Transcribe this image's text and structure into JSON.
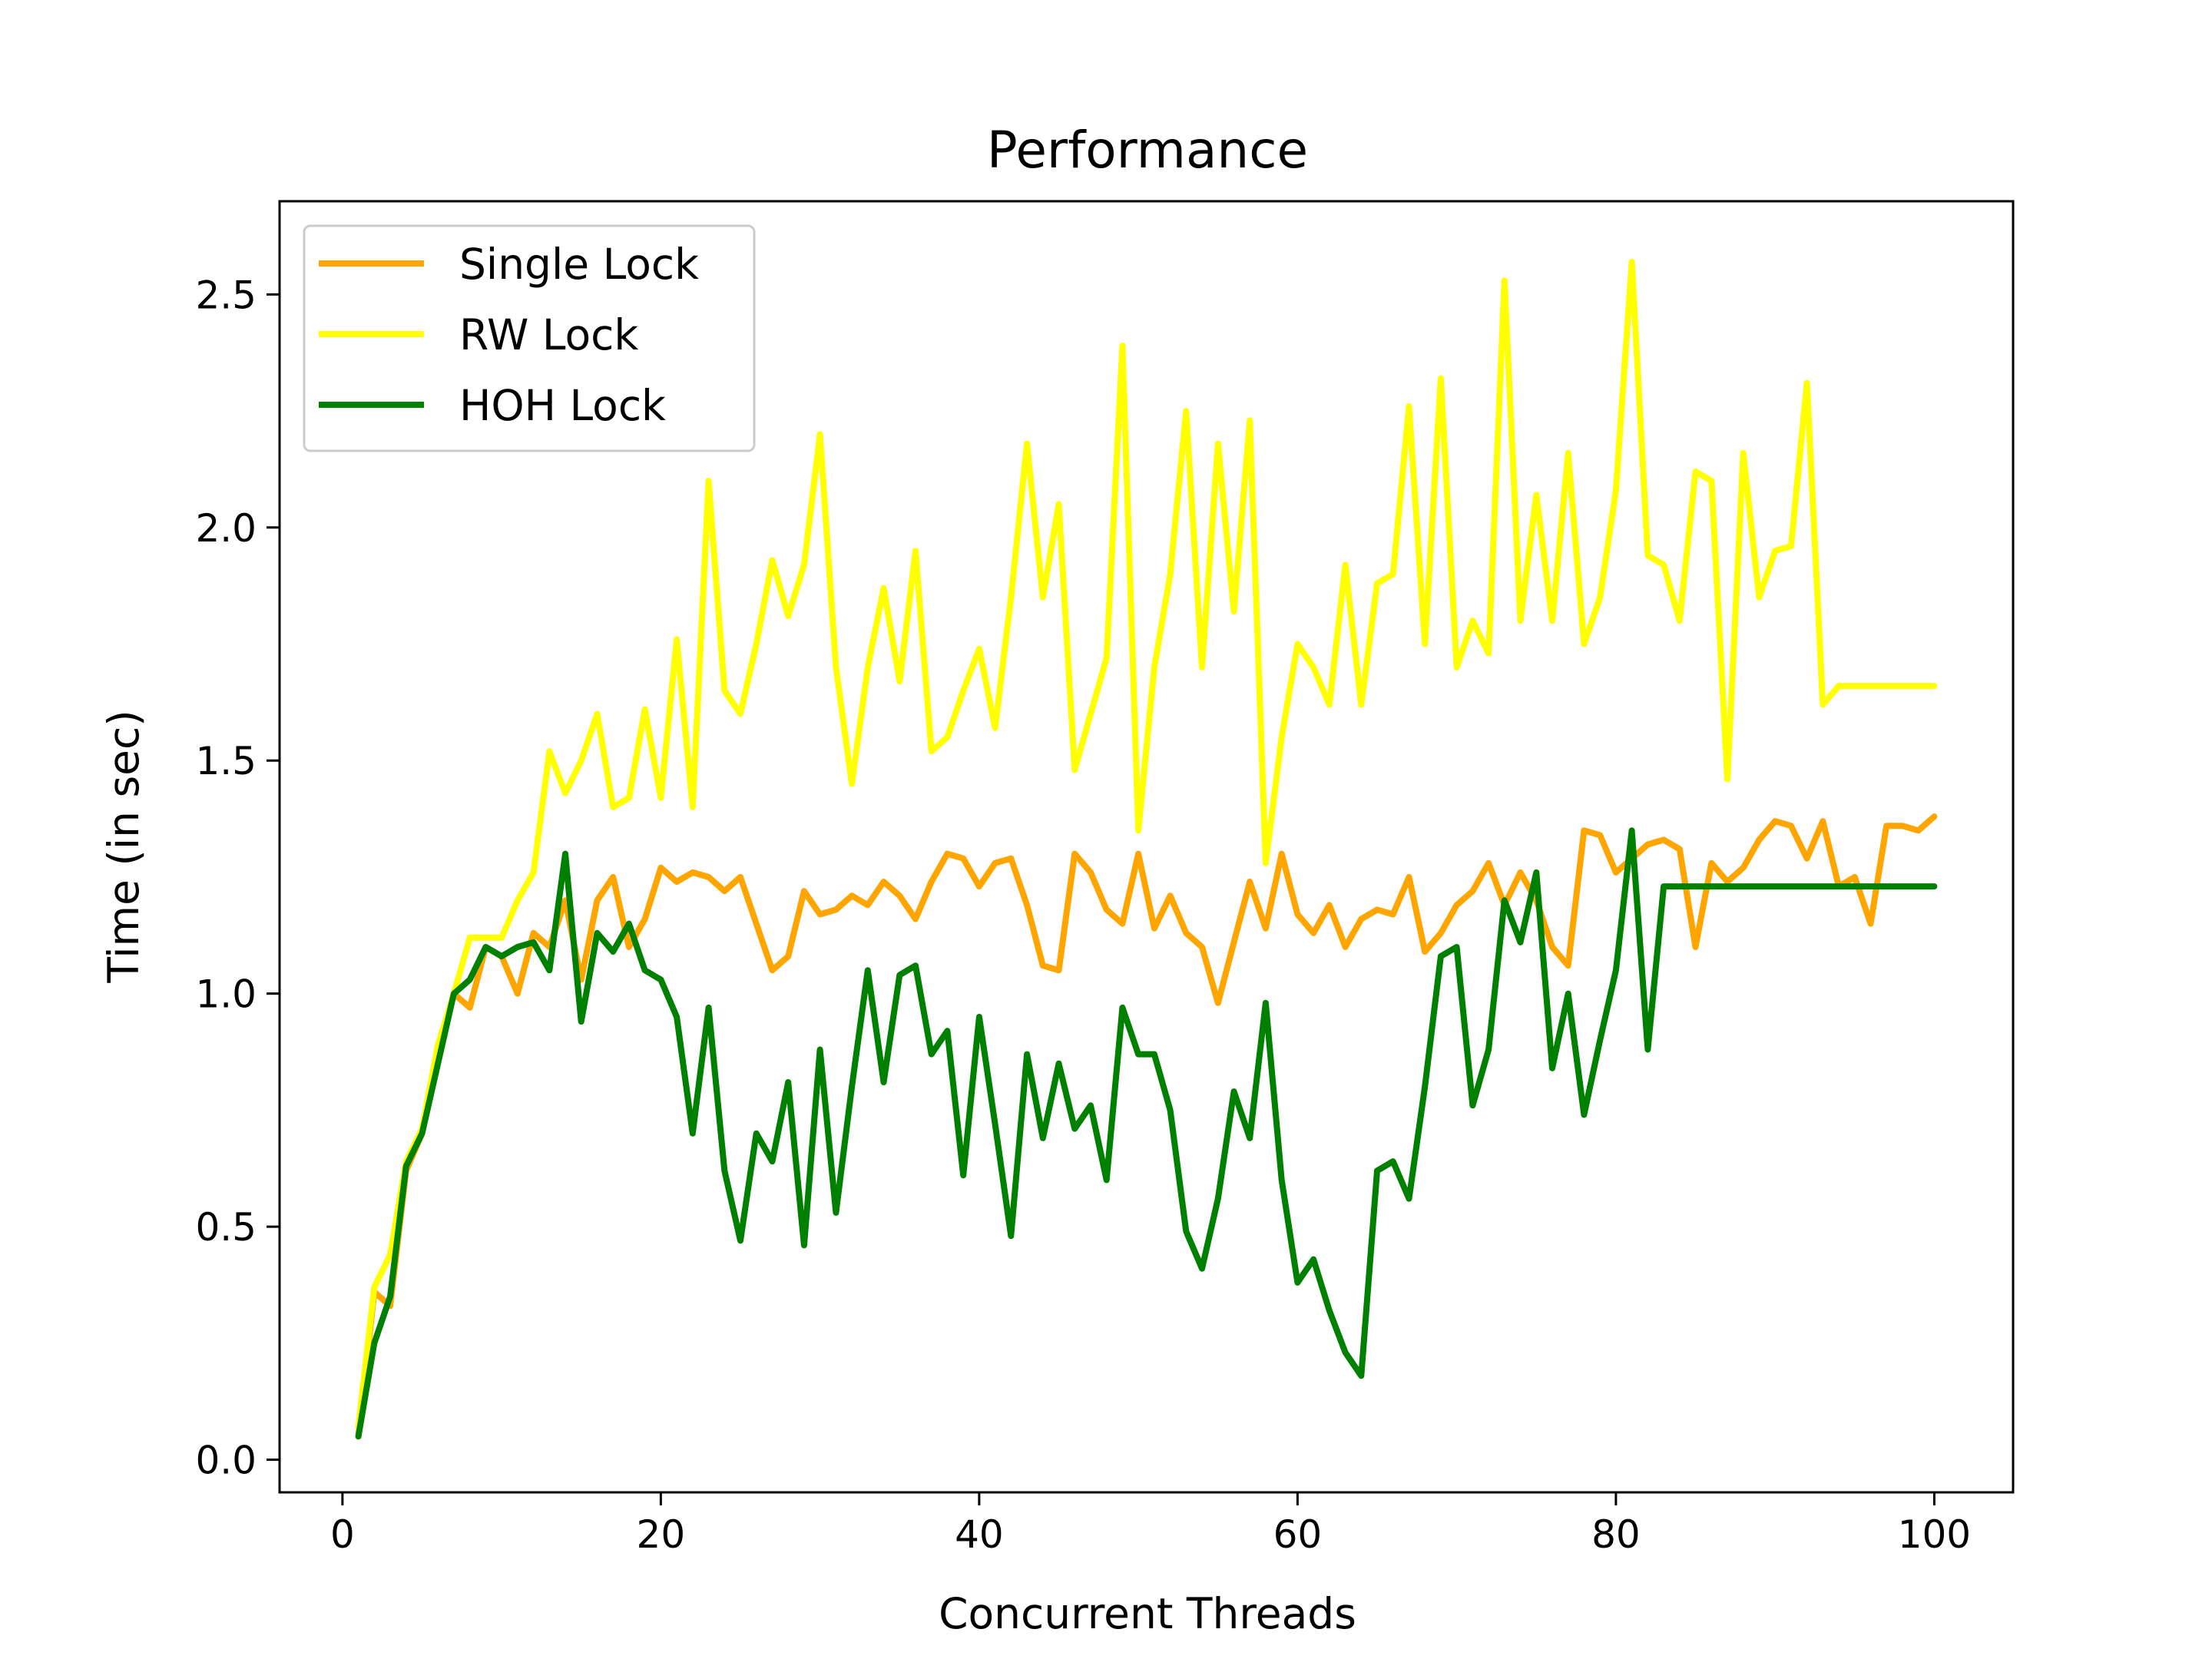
{
  "chart_data": {
    "type": "line",
    "title": "Performance",
    "xlabel": "Concurrent Threads",
    "ylabel": "Time (in sec)",
    "xlim": [
      -3.95,
      104.95
    ],
    "ylim": [
      -0.07,
      2.7
    ],
    "xticks": [
      0,
      20,
      40,
      60,
      80,
      100
    ],
    "yticks": [
      0.0,
      0.5,
      1.0,
      1.5,
      2.0,
      2.5
    ],
    "xtick_labels": [
      "0",
      "20",
      "40",
      "60",
      "80",
      "100"
    ],
    "ytick_labels": [
      "0.0",
      "0.5",
      "1.0",
      "1.5",
      "2.0",
      "2.5"
    ],
    "grid": false,
    "legend_position": "top-left",
    "x": [
      1,
      2,
      3,
      4,
      5,
      6,
      7,
      8,
      9,
      10,
      11,
      12,
      13,
      14,
      15,
      16,
      17,
      18,
      19,
      20,
      21,
      22,
      23,
      24,
      25,
      26,
      27,
      28,
      29,
      30,
      31,
      32,
      33,
      34,
      35,
      36,
      37,
      38,
      39,
      40,
      41,
      42,
      43,
      44,
      45,
      46,
      47,
      48,
      49,
      50,
      51,
      52,
      53,
      54,
      55,
      56,
      57,
      58,
      59,
      60,
      61,
      62,
      63,
      64,
      65,
      66,
      67,
      68,
      69,
      70,
      71,
      72,
      73,
      74,
      75,
      76,
      77,
      78,
      79,
      80,
      81,
      82,
      83,
      84,
      85,
      86,
      87,
      88,
      89,
      90,
      91,
      92,
      93,
      94,
      95,
      96,
      97,
      98,
      99,
      100
    ],
    "series": [
      {
        "name": "Single Lock",
        "color": "#FFA500",
        "values": [
          0.05,
          0.36,
          0.33,
          0.62,
          0.7,
          0.86,
          1.0,
          0.97,
          1.1,
          1.08,
          1.0,
          1.13,
          1.1,
          1.2,
          1.03,
          1.2,
          1.25,
          1.1,
          1.16,
          1.27,
          1.24,
          1.26,
          1.25,
          1.22,
          1.25,
          1.15,
          1.05,
          1.08,
          1.22,
          1.17,
          1.18,
          1.21,
          1.19,
          1.24,
          1.21,
          1.16,
          1.24,
          1.3,
          1.29,
          1.23,
          1.28,
          1.29,
          1.19,
          1.06,
          1.05,
          1.3,
          1.26,
          1.18,
          1.15,
          1.3,
          1.14,
          1.21,
          1.13,
          1.1,
          0.98,
          1.11,
          1.24,
          1.14,
          1.3,
          1.17,
          1.13,
          1.19,
          1.1,
          1.16,
          1.18,
          1.17,
          1.25,
          1.09,
          1.13,
          1.19,
          1.22,
          1.28,
          1.19,
          1.26,
          1.2,
          1.1,
          1.06,
          1.35,
          1.34,
          1.26,
          1.29,
          1.32,
          1.33,
          1.31,
          1.1,
          1.28,
          1.24,
          1.27,
          1.33,
          1.37,
          1.36,
          1.29,
          1.37,
          1.23,
          1.25,
          1.15,
          1.36,
          1.36,
          1.35,
          1.38
        ]
      },
      {
        "name": "RW Lock",
        "color": "#FFFF00",
        "values": [
          0.07,
          0.37,
          0.44,
          0.64,
          0.71,
          0.89,
          1.0,
          1.12,
          1.12,
          1.12,
          1.2,
          1.26,
          1.52,
          1.43,
          1.5,
          1.6,
          1.4,
          1.42,
          1.61,
          1.42,
          1.76,
          1.4,
          2.1,
          1.65,
          1.6,
          1.75,
          1.93,
          1.81,
          1.92,
          2.2,
          1.7,
          1.45,
          1.7,
          1.87,
          1.67,
          1.95,
          1.52,
          1.55,
          1.65,
          1.74,
          1.57,
          1.85,
          2.18,
          1.85,
          2.05,
          1.48,
          1.6,
          1.72,
          2.39,
          1.35,
          1.7,
          1.9,
          2.25,
          1.7,
          2.18,
          1.82,
          2.23,
          1.28,
          1.55,
          1.75,
          1.7,
          1.62,
          1.92,
          1.62,
          1.88,
          1.9,
          2.26,
          1.75,
          2.32,
          1.7,
          1.8,
          1.73,
          2.53,
          1.8,
          2.07,
          1.8,
          2.16,
          1.75,
          1.85,
          2.08,
          2.57,
          1.94,
          1.92,
          1.8,
          2.12,
          2.1,
          1.46,
          2.16,
          1.85,
          1.95,
          1.96,
          2.31,
          1.62,
          1.66,
          1.66,
          1.66,
          1.66,
          1.66,
          1.66,
          1.66
        ]
      },
      {
        "name": "HOH Lock",
        "color": "#008000",
        "values": [
          0.05,
          0.25,
          0.35,
          0.63,
          0.7,
          0.85,
          1.0,
          1.03,
          1.1,
          1.08,
          1.1,
          1.11,
          1.05,
          1.3,
          0.94,
          1.13,
          1.09,
          1.15,
          1.05,
          1.03,
          0.95,
          0.7,
          0.97,
          0.62,
          0.47,
          0.7,
          0.64,
          0.81,
          0.46,
          0.88,
          0.53,
          0.8,
          1.05,
          0.81,
          1.04,
          1.06,
          0.87,
          0.92,
          0.61,
          0.95,
          0.72,
          0.48,
          0.87,
          0.69,
          0.85,
          0.71,
          0.76,
          0.6,
          0.97,
          0.87,
          0.87,
          0.75,
          0.49,
          0.41,
          0.56,
          0.79,
          0.69,
          0.98,
          0.6,
          0.38,
          0.43,
          0.32,
          0.23,
          0.18,
          0.62,
          0.64,
          0.56,
          0.8,
          1.08,
          1.1,
          0.76,
          0.88,
          1.2,
          1.11,
          1.26,
          0.84,
          1.0,
          0.74,
          0.9,
          1.05,
          1.35,
          0.88,
          1.23,
          1.23,
          1.23,
          1.23,
          1.23,
          1.23,
          1.23,
          1.23,
          1.23,
          1.23,
          1.23,
          1.23,
          1.23,
          1.23,
          1.23,
          1.23,
          1.23,
          1.23
        ]
      }
    ]
  }
}
